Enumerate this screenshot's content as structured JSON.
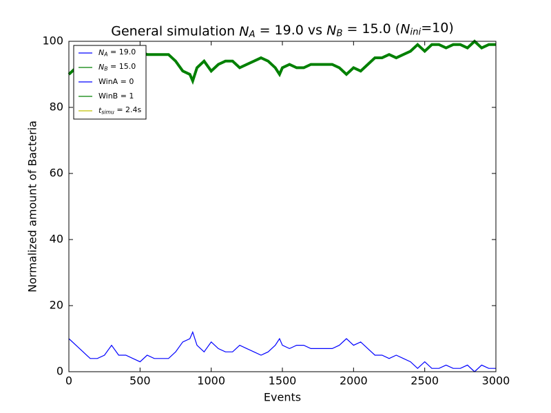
{
  "chart_data": {
    "type": "line",
    "title": "General simulation N_A = 19.0 vs N_B = 15.0 (N_ini=10)",
    "xlabel": "Events",
    "ylabel": "Normalized amount of Bacteria",
    "xlim": [
      0,
      3000
    ],
    "xticks": [
      0,
      500,
      1000,
      1500,
      2000,
      2500,
      3000
    ],
    "ylim": [
      0,
      100
    ],
    "yticks": [
      0,
      20,
      40,
      60,
      80,
      100
    ],
    "legend_loc": "upper left",
    "x": [
      0,
      50,
      100,
      150,
      200,
      250,
      300,
      350,
      400,
      450,
      500,
      550,
      600,
      650,
      700,
      750,
      800,
      850,
      870,
      900,
      950,
      1000,
      1050,
      1100,
      1150,
      1200,
      1250,
      1300,
      1350,
      1400,
      1450,
      1480,
      1500,
      1550,
      1600,
      1650,
      1700,
      1750,
      1800,
      1850,
      1900,
      1950,
      2000,
      2050,
      2100,
      2150,
      2200,
      2250,
      2300,
      2350,
      2400,
      2450,
      2500,
      2550,
      2600,
      2650,
      2700,
      2750,
      2800,
      2850,
      2900,
      2950,
      3000
    ],
    "series": [
      {
        "name": "N_A = 19.0",
        "color": "#0000ff",
        "width": 1.2,
        "values": [
          10,
          8,
          6,
          4,
          4,
          5,
          8,
          5,
          5,
          4,
          3,
          5,
          4,
          4,
          4,
          6,
          9,
          10,
          12,
          8,
          6,
          9,
          7,
          6,
          6,
          8,
          7,
          6,
          5,
          6,
          8,
          10,
          8,
          7,
          8,
          8,
          7,
          7,
          7,
          7,
          8,
          10,
          8,
          9,
          7,
          5,
          5,
          4,
          5,
          4,
          3,
          1,
          3,
          1,
          1,
          2,
          1,
          1,
          2,
          0,
          2,
          1,
          1
        ]
      },
      {
        "name": "N_B = 15.0",
        "color": "#008000",
        "width": 4,
        "values": [
          90,
          92,
          94,
          96,
          96,
          95,
          92,
          95,
          95,
          96,
          97,
          96,
          96,
          96,
          96,
          94,
          91,
          90,
          88,
          92,
          94,
          91,
          93,
          94,
          94,
          92,
          93,
          94,
          95,
          94,
          92,
          90,
          92,
          93,
          92,
          92,
          93,
          93,
          93,
          93,
          92,
          90,
          92,
          91,
          93,
          95,
          95,
          96,
          95,
          96,
          97,
          99,
          97,
          99,
          99,
          98,
          99,
          99,
          98,
          100,
          98,
          99,
          99
        ]
      }
    ],
    "legend_extra": [
      {
        "name": "WinA = 0",
        "color": "#0000ff"
      },
      {
        "name": "WinB = 1",
        "color": "#008000"
      },
      {
        "name": "t_simu = 2.4s",
        "color": "#bfbf00"
      }
    ]
  }
}
